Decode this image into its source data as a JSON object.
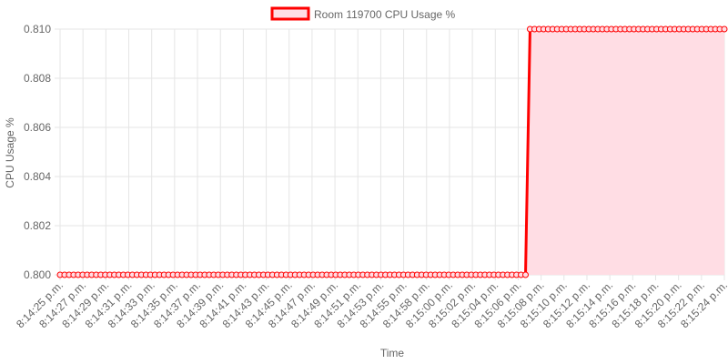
{
  "chart_data": {
    "type": "line",
    "title": "",
    "xlabel": "Time",
    "ylabel": "CPU Usage %",
    "ylim": [
      0.8,
      0.81
    ],
    "yticks": [
      0.8,
      0.802,
      0.804,
      0.806,
      0.808,
      0.81
    ],
    "ytick_labels": [
      "0.800",
      "0.802",
      "0.804",
      "0.806",
      "0.808",
      "0.810"
    ],
    "x_tick_labels": [
      "8:14:25 p.m.",
      "8:14:27 p.m.",
      "8:14:29 p.m.",
      "8:14:31 p.m.",
      "8:14:33 p.m.",
      "8:14:35 p.m.",
      "8:14:37 p.m.",
      "8:14:39 p.m.",
      "8:14:41 p.m.",
      "8:14:43 p.m.",
      "8:14:45 p.m.",
      "8:14:47 p.m.",
      "8:14:49 p.m.",
      "8:14:51 p.m.",
      "8:14:53 p.m.",
      "8:14:55 p.m.",
      "8:14:58 p.m.",
      "8:15:00 p.m.",
      "8:15:02 p.m.",
      "8:15:04 p.m.",
      "8:15:06 p.m.",
      "8:15:08 p.m.",
      "8:15:10 p.m.",
      "8:15:12 p.m.",
      "8:15:14 p.m.",
      "8:15:16 p.m.",
      "8:15:18 p.m.",
      "8:15:20 p.m.",
      "8:15:22 p.m.",
      "8:15:24 p.m."
    ],
    "grid": true,
    "legend_position": "top-center",
    "series": [
      {
        "name": "Room 119700 CPU Usage %",
        "line_color": "#ff0000",
        "fill_color": "#ffdde4",
        "point_count": 148,
        "step_index": 104,
        "value_before": 0.8,
        "value_after": 0.81
      }
    ]
  }
}
